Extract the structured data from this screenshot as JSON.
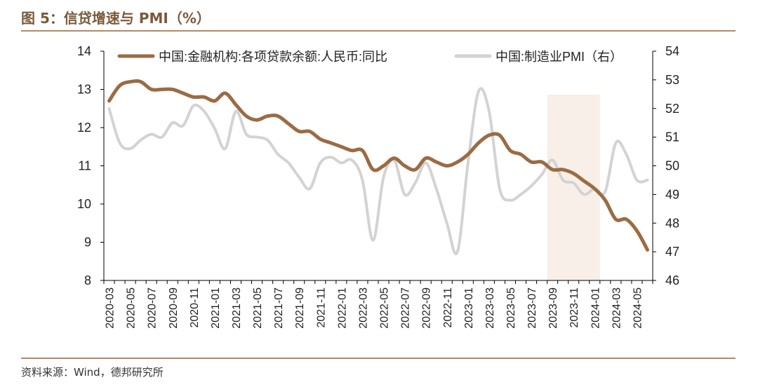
{
  "header": {
    "title": "图 5：信贷增速与 PMI（%）"
  },
  "footer": {
    "source": "资料来源：Wind，德邦研究所"
  },
  "colors": {
    "loan": "#9b6b43",
    "pmi": "#d3d3d3",
    "highlight": "#f7efe8",
    "axis": "#000000"
  },
  "chart_data": {
    "type": "line",
    "title": "",
    "x": [
      "2020-03",
      "2020-04",
      "2020-05",
      "2020-06",
      "2020-07",
      "2020-08",
      "2020-09",
      "2020-10",
      "2020-11",
      "2020-12",
      "2021-01",
      "2021-02",
      "2021-03",
      "2021-04",
      "2021-05",
      "2021-06",
      "2021-07",
      "2021-08",
      "2021-09",
      "2021-10",
      "2021-11",
      "2021-12",
      "2022-01",
      "2022-02",
      "2022-03",
      "2022-04",
      "2022-05",
      "2022-06",
      "2022-07",
      "2022-08",
      "2022-09",
      "2022-10",
      "2022-11",
      "2022-12",
      "2023-01",
      "2023-02",
      "2023-03",
      "2023-04",
      "2023-05",
      "2023-06",
      "2023-07",
      "2023-08",
      "2023-09",
      "2023-10",
      "2023-11",
      "2023-12",
      "2024-01",
      "2024-02",
      "2024-03",
      "2024-04",
      "2024-05",
      "2024-06"
    ],
    "x_tick_labels": [
      "2020-03",
      "2020-05",
      "2020-07",
      "2020-09",
      "2020-11",
      "2021-01",
      "2021-03",
      "2021-05",
      "2021-07",
      "2021-09",
      "2021-11",
      "2022-01",
      "2022-03",
      "2022-05",
      "2022-07",
      "2022-09",
      "2022-11",
      "2023-01",
      "2023-03",
      "2023-05",
      "2023-07",
      "2023-09",
      "2023-11",
      "2024-01",
      "2024-03",
      "2024-05"
    ],
    "series": [
      {
        "name": "中国:金融机构:各项贷款余额:人民币:同比",
        "axis": "left",
        "values": [
          12.7,
          13.1,
          13.2,
          13.2,
          13.0,
          13.0,
          13.0,
          12.9,
          12.8,
          12.8,
          12.7,
          12.9,
          12.6,
          12.3,
          12.2,
          12.3,
          12.3,
          12.1,
          11.9,
          11.9,
          11.7,
          11.6,
          11.5,
          11.4,
          11.4,
          10.9,
          11.0,
          11.2,
          11.0,
          10.9,
          11.2,
          11.1,
          11.0,
          11.1,
          11.3,
          11.6,
          11.8,
          11.8,
          11.4,
          11.3,
          11.1,
          11.1,
          10.9,
          10.9,
          10.8,
          10.6,
          10.4,
          10.1,
          9.6,
          9.6,
          9.3,
          8.8
        ]
      },
      {
        "name": "中国:制造业PMI（右）",
        "axis": "right",
        "values": [
          52.0,
          50.8,
          50.6,
          50.9,
          51.1,
          51.0,
          51.5,
          51.4,
          52.1,
          51.9,
          51.3,
          50.6,
          51.9,
          51.1,
          51.0,
          50.9,
          50.4,
          50.1,
          49.6,
          49.2,
          50.1,
          50.3,
          50.1,
          50.2,
          49.5,
          47.4,
          49.6,
          50.2,
          49.0,
          49.4,
          50.1,
          49.2,
          48.0,
          47.0,
          50.1,
          52.6,
          51.9,
          49.2,
          48.8,
          49.0,
          49.3,
          49.7,
          50.2,
          49.5,
          49.4,
          49.0,
          49.2,
          49.1,
          50.8,
          50.4,
          49.5,
          49.5
        ]
      }
    ],
    "y_left": {
      "min": 8,
      "max": 14,
      "ticks": [
        "8",
        "9",
        "10",
        "11",
        "12",
        "13",
        "14"
      ]
    },
    "y_right": {
      "min": 46,
      "max": 54,
      "ticks": [
        "46",
        "47",
        "48",
        "49",
        "50",
        "51",
        "52",
        "53",
        "54"
      ]
    },
    "highlight_range": [
      "2023-09",
      "2024-01"
    ],
    "legend_position": "top",
    "grid": false
  }
}
